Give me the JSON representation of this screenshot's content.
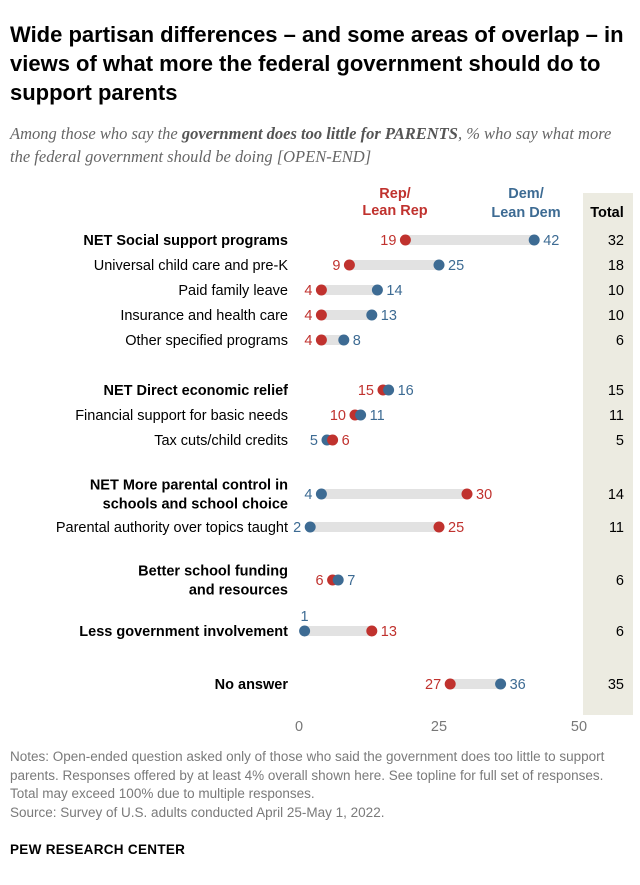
{
  "title": "Wide partisan differences – and some areas of overlap – in views of what more the federal government should do to support parents",
  "subtitle": {
    "prefix": "Among those who say the ",
    "emphasis": "government does too little for PARENTS",
    "suffix": ", % who say what more the federal government should be doing [OPEN-END]"
  },
  "legend": {
    "rep_line1": "Rep/",
    "rep_line2": "Lean Rep",
    "dem_line1": "Dem/",
    "dem_line2": "Lean Dem",
    "total_header": "Total"
  },
  "colors": {
    "rep": "#c0322e",
    "dem": "#3d6b93",
    "bar": "#e2e2e2",
    "total_bg": "#ecebe1"
  },
  "chart_data": {
    "type": "dot",
    "x_range": [
      0,
      50
    ],
    "x_ticks": [
      "0",
      "25",
      "50"
    ],
    "series": [
      {
        "name": "Rep/Lean Rep"
      },
      {
        "name": "Dem/Lean Dem"
      },
      {
        "name": "Total"
      }
    ],
    "rows": [
      {
        "label": [
          "NET Social support programs"
        ],
        "bold": true,
        "rep": 19,
        "dem": 42,
        "total": 32,
        "dem_label": "42",
        "rep_label": "19",
        "total_label": "32"
      },
      {
        "label": [
          "Universal child care and pre-K"
        ],
        "bold": false,
        "rep": 9,
        "dem": 25,
        "total": 18,
        "dem_label": "25",
        "rep_label": "9",
        "total_label": "18"
      },
      {
        "label": [
          "Paid family leave"
        ],
        "bold": false,
        "rep": 4,
        "dem": 14,
        "total": 10,
        "dem_label": "14",
        "rep_label": "4",
        "total_label": "10"
      },
      {
        "label": [
          "Insurance and health care"
        ],
        "bold": false,
        "rep": 4,
        "dem": 13,
        "total": 10,
        "dem_label": "13",
        "rep_label": "4",
        "total_label": "10"
      },
      {
        "label": [
          "Other specified programs"
        ],
        "bold": false,
        "rep": 4,
        "dem": 8,
        "total": 6,
        "dem_label": "8",
        "rep_label": "4",
        "total_label": "6"
      },
      {
        "label": [
          "NET Direct economic relief"
        ],
        "bold": true,
        "rep": 15,
        "dem": 16,
        "total": 15,
        "dem_label": "16",
        "rep_label": "15",
        "total_label": "15"
      },
      {
        "label": [
          "Financial support for basic needs"
        ],
        "bold": false,
        "rep": 10,
        "dem": 11,
        "total": 11,
        "dem_label": "11",
        "rep_label": "10",
        "total_label": "11"
      },
      {
        "label": [
          "Tax cuts/child credits"
        ],
        "bold": false,
        "rep": 6,
        "dem": 5,
        "total": 5,
        "dem_label": "5",
        "rep_label": "6",
        "total_label": "5"
      },
      {
        "label": [
          "NET More parental control in",
          "schools and school choice"
        ],
        "bold": true,
        "rep": 30,
        "dem": 4,
        "total": 14,
        "dem_label": "4",
        "rep_label": "30",
        "total_label": "14"
      },
      {
        "label": [
          "Parental authority over topics taught"
        ],
        "bold": false,
        "rep": 25,
        "dem": 2,
        "total": 11,
        "dem_label": "2",
        "rep_label": "25",
        "total_label": "11"
      },
      {
        "label": [
          "Better school funding",
          "and resources"
        ],
        "bold": true,
        "rep": 6,
        "dem": 7,
        "total": 6,
        "dem_label": "7",
        "rep_label": "6",
        "total_label": "6"
      },
      {
        "label": [
          "Less government involvement"
        ],
        "bold": true,
        "rep": 13,
        "dem": 1,
        "total": 6,
        "dem_label": "1",
        "rep_label": "13",
        "total_label": "6"
      },
      {
        "label": [
          "No answer"
        ],
        "bold": true,
        "rep": 27,
        "dem": 36,
        "total": 35,
        "dem_label": "36",
        "rep_label": "27",
        "total_label": "35"
      }
    ]
  },
  "notes": "Notes: Open-ended question asked only of those who said the government does too little to support parents. Responses offered by at least 4% overall shown here. See topline for full set of responses. Total may exceed 100% due to multiple responses.",
  "source": "Source: Survey of U.S. adults conducted April 25-May 1, 2022.",
  "brand": "PEW RESEARCH CENTER"
}
